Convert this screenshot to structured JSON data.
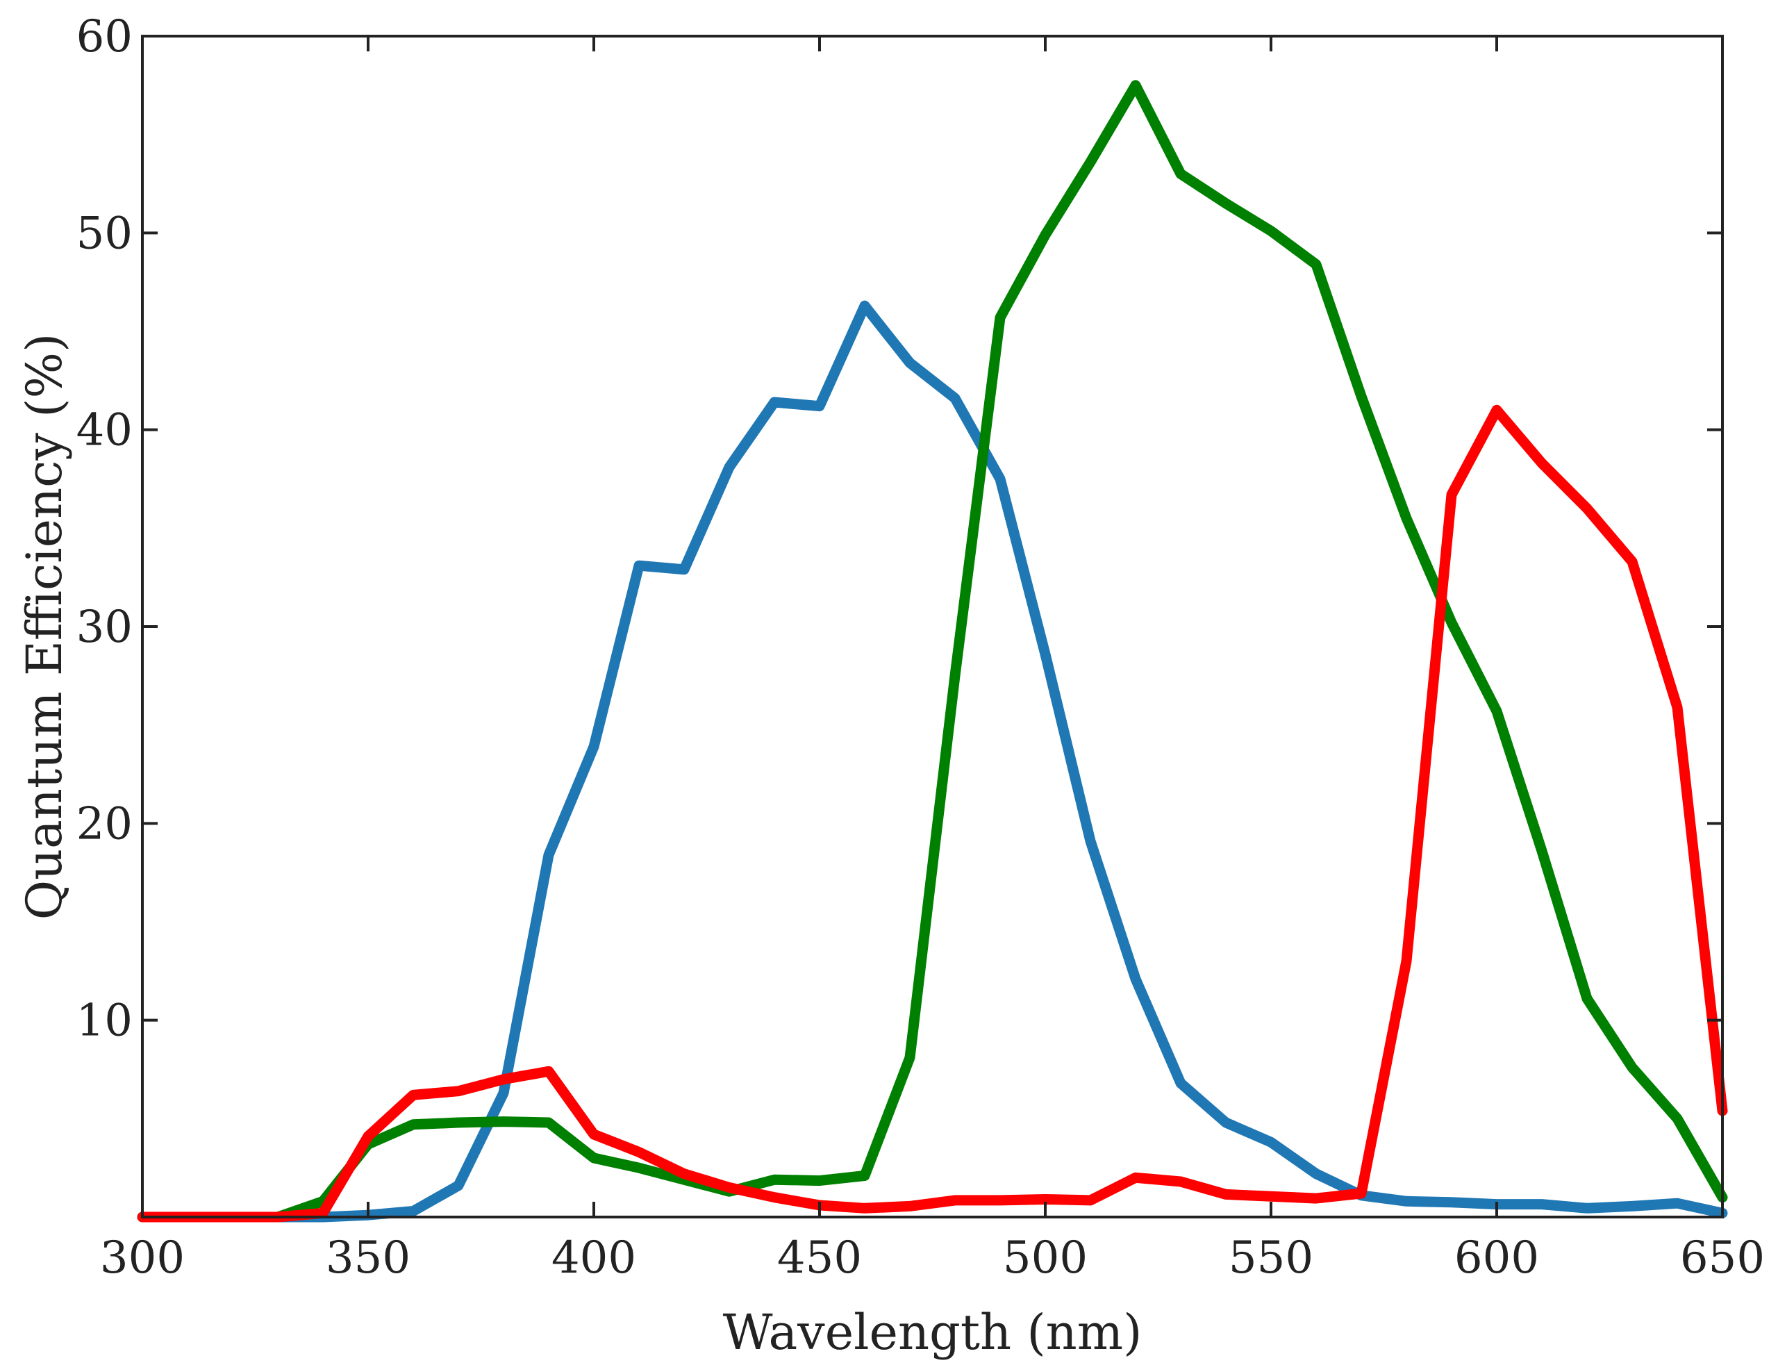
{
  "chart_data": {
    "type": "line",
    "title": "",
    "xlabel": "Wavelength (nm)",
    "ylabel": "Quantum Efficiency (%)",
    "xlim": [
      300,
      650
    ],
    "ylim": [
      0,
      60
    ],
    "x_ticks": [
      300,
      350,
      400,
      450,
      500,
      550,
      600,
      650
    ],
    "y_ticks": [
      10,
      20,
      30,
      40,
      50,
      60
    ],
    "grid": false,
    "legend": "none",
    "x": [
      300,
      310,
      320,
      330,
      340,
      350,
      360,
      370,
      380,
      390,
      400,
      410,
      420,
      430,
      440,
      450,
      460,
      470,
      480,
      490,
      500,
      510,
      520,
      530,
      540,
      550,
      560,
      570,
      580,
      590,
      600,
      610,
      620,
      630,
      640,
      650
    ],
    "series": [
      {
        "color": "#1f77b4",
        "values": [
          0,
          0,
          0,
          0,
          0,
          0.1,
          0.3,
          1.6,
          6.3,
          18.4,
          23.9,
          33.1,
          32.9,
          38.1,
          41.4,
          41.2,
          46.3,
          43.4,
          41.6,
          37.5,
          28.6,
          19.1,
          12.1,
          6.8,
          4.8,
          3.8,
          2.2,
          1.1,
          0.8,
          0.75,
          0.65,
          0.65,
          0.45,
          0.55,
          0.7,
          0.2
        ]
      },
      {
        "color": "#008000",
        "values": [
          0,
          0,
          0,
          0,
          0.8,
          3.7,
          4.7,
          4.8,
          4.85,
          4.8,
          3.0,
          2.5,
          1.9,
          1.3,
          1.9,
          1.85,
          2.1,
          8.1,
          27.5,
          45.7,
          49.9,
          53.6,
          57.5,
          53.0,
          51.5,
          50.1,
          48.4,
          41.7,
          35.5,
          30.2,
          25.7,
          18.6,
          11.1,
          7.6,
          5.0,
          1.0
        ]
      },
      {
        "color": "#ff0000",
        "values": [
          0,
          0,
          0,
          0,
          0.2,
          4.1,
          6.2,
          6.4,
          7.0,
          7.4,
          4.2,
          3.3,
          2.2,
          1.5,
          1.0,
          0.6,
          0.45,
          0.55,
          0.85,
          0.85,
          0.9,
          0.85,
          2.0,
          1.8,
          1.15,
          1.05,
          0.95,
          1.2,
          13.0,
          36.7,
          41.0,
          38.3,
          36.0,
          33.3,
          25.9,
          5.4
        ]
      }
    ]
  }
}
